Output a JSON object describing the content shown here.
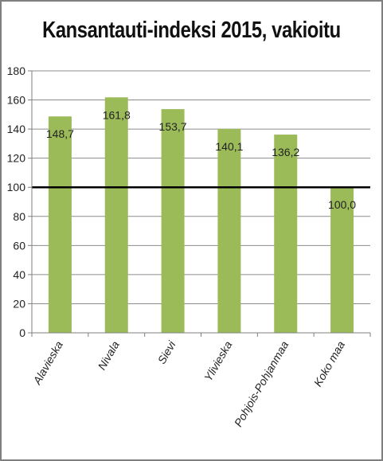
{
  "chart_data": {
    "type": "bar",
    "title": "Kansantauti-indeksi 2015, vakioitu",
    "categories": [
      "Alavieska",
      "Nivala",
      "Sievi",
      "Ylivieska",
      "Pohjois-Pohjanmaa",
      "Koko maa"
    ],
    "values": [
      148.7,
      161.8,
      153.7,
      140.1,
      136.2,
      100.0
    ],
    "data_labels": [
      "148,7",
      "161,8",
      "153,7",
      "140,1",
      "136,2",
      "100,0"
    ],
    "y_ticks": [
      "0",
      "20",
      "40",
      "60",
      "80",
      "100",
      "120",
      "140",
      "160",
      "180"
    ],
    "ylim": [
      0,
      180
    ],
    "reference_line": 100,
    "grid": true,
    "legend": "none",
    "colors": {
      "bar": "#9bbb59",
      "grid": "#8c8c8c",
      "reference": "#000000",
      "axis": "#7f7f7f"
    }
  }
}
